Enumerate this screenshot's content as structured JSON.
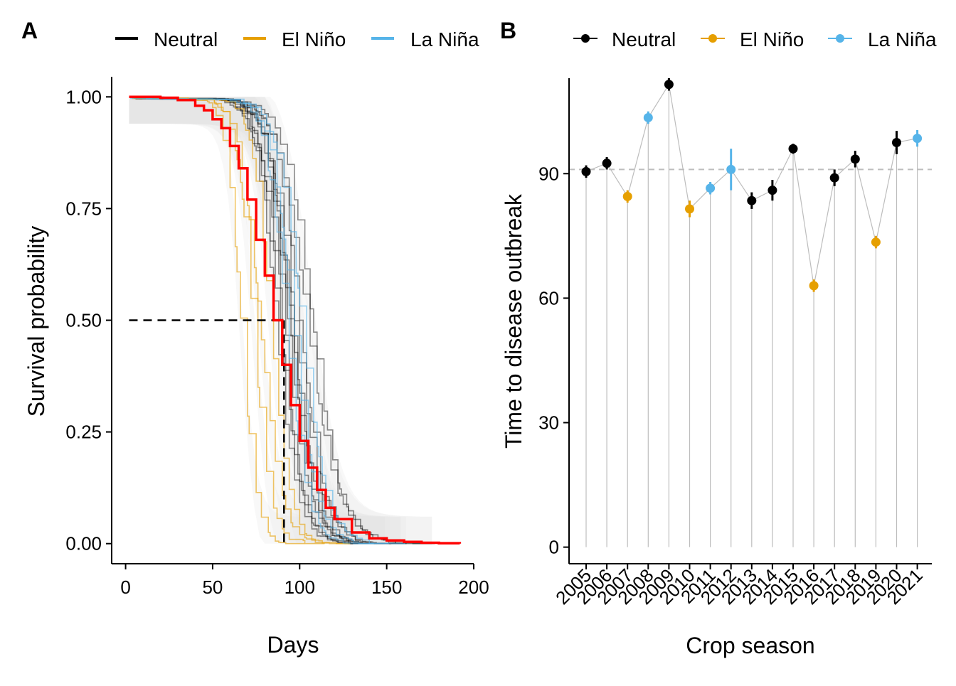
{
  "panels": {
    "a": {
      "letter": "A"
    },
    "b": {
      "letter": "B"
    }
  },
  "colors": {
    "neutral": "#000000",
    "el_nino": "#E69F00",
    "la_nina": "#56B4E9",
    "mean_curve": "#FF0000",
    "band": "#E6E6E6",
    "drop_lines": "#BDBDBD",
    "ref_line": "#BDBDBD"
  },
  "chart_data": [
    {
      "panel": "A",
      "type": "line",
      "xlabel": "Days",
      "ylabel": "Survival probability",
      "xlim": [
        -8,
        200
      ],
      "ylim": [
        -0.045,
        1.045
      ],
      "x_ticks": [
        "0",
        "50",
        "100",
        "150",
        "200"
      ],
      "y_ticks": [
        "0.00",
        "0.25",
        "0.50",
        "0.75",
        "1.00"
      ],
      "grid": false,
      "legend": {
        "placement": "top",
        "entries": [
          "Neutral",
          "El Niño",
          "La Niña"
        ]
      },
      "median_reference": {
        "x": 91,
        "y": 0.5
      },
      "mean_curve": {
        "points": [
          [
            2,
            1.0
          ],
          [
            20,
            0.998
          ],
          [
            30,
            0.993
          ],
          [
            40,
            0.98
          ],
          [
            45,
            0.97
          ],
          [
            50,
            0.95
          ],
          [
            55,
            0.93
          ],
          [
            60,
            0.89
          ],
          [
            65,
            0.84
          ],
          [
            70,
            0.77
          ],
          [
            75,
            0.68
          ],
          [
            80,
            0.6
          ],
          [
            85,
            0.5
          ],
          [
            90,
            0.4
          ],
          [
            95,
            0.31
          ],
          [
            100,
            0.23
          ],
          [
            105,
            0.17
          ],
          [
            110,
            0.12
          ],
          [
            115,
            0.08
          ],
          [
            120,
            0.055
          ],
          [
            130,
            0.025
          ],
          [
            140,
            0.012
          ],
          [
            150,
            0.007
          ],
          [
            160,
            0.004
          ],
          [
            170,
            0.002
          ],
          [
            180,
            0.001
          ],
          [
            192,
            0.0
          ]
        ]
      },
      "series": [
        {
          "name": "Neutral",
          "median": 91,
          "spread": 13
        },
        {
          "name": "Neutral",
          "median": 94,
          "spread": 12
        },
        {
          "name": "Neutral",
          "median": 89,
          "spread": 11
        },
        {
          "name": "Neutral",
          "median": 97,
          "spread": 14
        },
        {
          "name": "Neutral",
          "median": 107,
          "spread": 15
        },
        {
          "name": "Neutral",
          "median": 86,
          "spread": 11
        },
        {
          "name": "Neutral",
          "median": 88,
          "spread": 12
        },
        {
          "name": "Neutral",
          "median": 100,
          "spread": 13
        },
        {
          "name": "Neutral",
          "median": 104,
          "spread": 16
        },
        {
          "name": "Neutral",
          "median": 93,
          "spread": 12
        },
        {
          "name": "Neutral",
          "median": 95,
          "spread": 13
        },
        {
          "name": "El Niño",
          "median": 66,
          "spread": 8
        },
        {
          "name": "El Niño",
          "median": 77,
          "spread": 11
        },
        {
          "name": "El Niño",
          "median": 83,
          "spread": 10
        },
        {
          "name": "El Niño",
          "median": 73,
          "spread": 9
        },
        {
          "name": "La Niña",
          "median": 101,
          "spread": 13
        },
        {
          "name": "La Niña",
          "median": 96,
          "spread": 12
        },
        {
          "name": "La Niña",
          "median": 92,
          "spread": 11
        }
      ]
    },
    {
      "panel": "B",
      "type": "scatter",
      "xlabel": "Crop season",
      "ylabel": "Time to disease outbreak",
      "ylim": [
        -4,
        113
      ],
      "y_ticks": [
        "0",
        "30",
        "60",
        "90"
      ],
      "grid": false,
      "reference_line": 91,
      "legend": {
        "placement": "top",
        "entries": [
          "Neutral",
          "El Niño",
          "La Niña"
        ]
      },
      "categories": [
        "2005",
        "2006",
        "2007",
        "2008",
        "2009",
        "2010",
        "2011",
        "2012",
        "2013",
        "2014",
        "2015",
        "2016",
        "2017",
        "2018",
        "2019",
        "2020",
        "2021"
      ],
      "values": [
        90.5,
        92.5,
        84.5,
        103.5,
        111.5,
        81.5,
        86.5,
        91,
        83.5,
        86,
        96,
        63,
        89,
        93.5,
        73.5,
        97.5,
        98.5
      ],
      "errors": [
        1.5,
        1.5,
        1.5,
        1.5,
        1.5,
        2,
        1.5,
        5,
        2,
        2.5,
        1.2,
        1.5,
        2,
        2,
        1.5,
        2.8,
        2
      ],
      "phase": [
        "Neutral",
        "Neutral",
        "El Niño",
        "La Niña",
        "Neutral",
        "El Niño",
        "La Niña",
        "La Niña",
        "Neutral",
        "Neutral",
        "Neutral",
        "El Niño",
        "Neutral",
        "Neutral",
        "El Niño",
        "Neutral",
        "La Niña"
      ]
    }
  ]
}
